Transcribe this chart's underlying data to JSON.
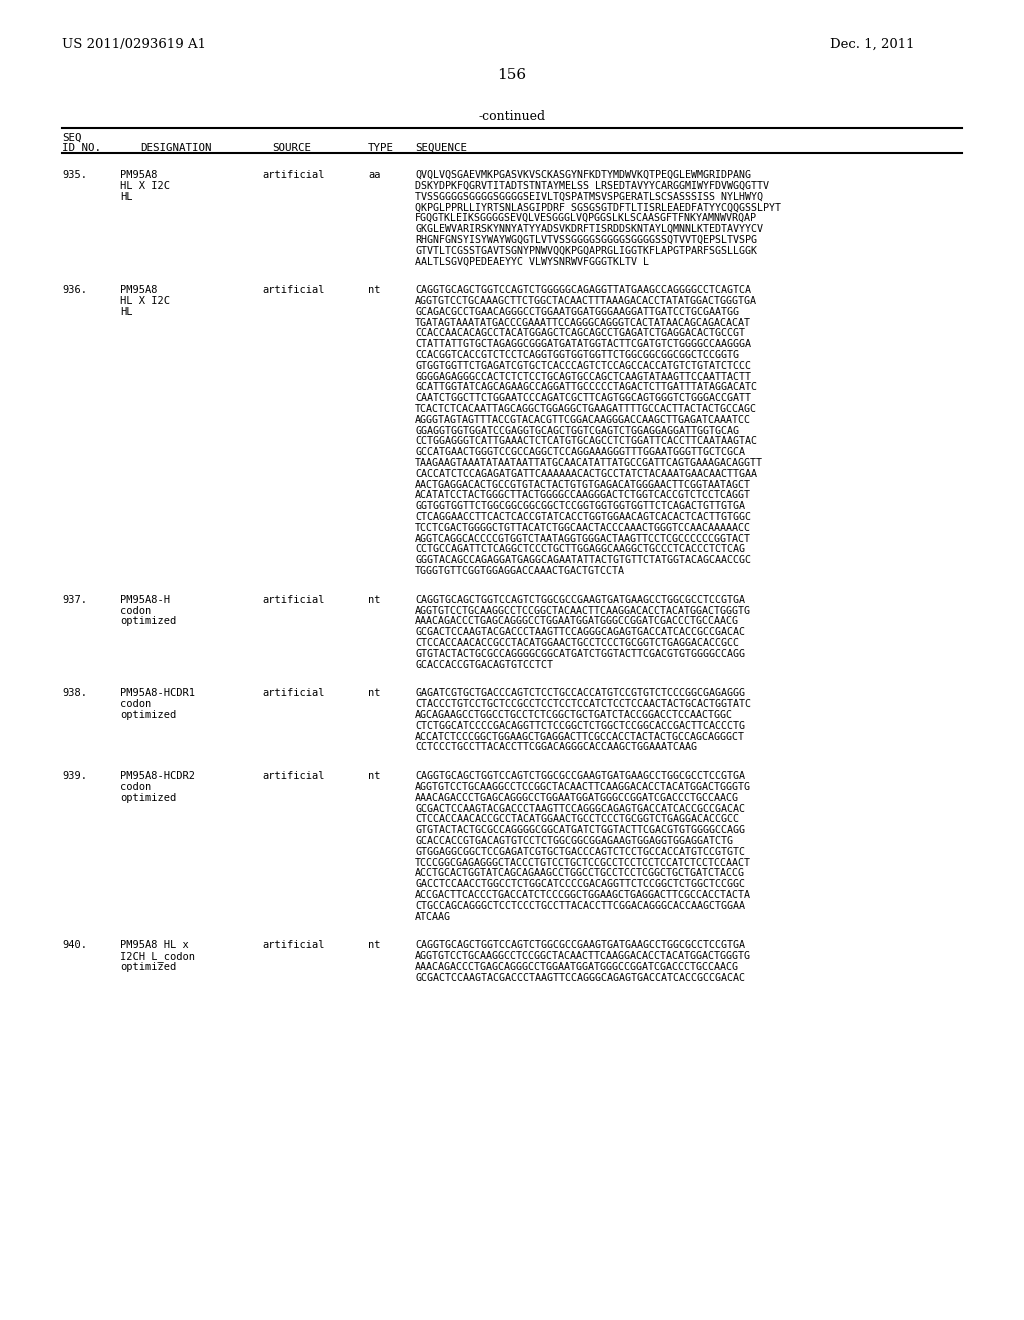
{
  "page_header_left": "US 2011/0293619 A1",
  "page_header_right": "Dec. 1, 2011",
  "page_number": "156",
  "continued_label": "-continued",
  "background_color": "#ffffff",
  "text_color": "#000000",
  "entries": [
    {
      "seq_id": "935.",
      "designation_lines": [
        "PM95A8",
        "HL X I2C",
        "HL"
      ],
      "source": "artificial",
      "type": "aa",
      "seq_lines": [
        "QVQLVQSGAEVMKPGASVKVSCKASGYNFKDTYMDWVKQTPEQGLEWMGRIDPANG",
        "DSKYDPKFQGRVTITADTSTNTAYMELSS LRSEDTAVYYCARGGMIWYFDVWGQGTTV",
        "TVSSGGGGSGGGGSGGGGSEIVLTQSPATMSVSPGERATLSCSASSSISS NYLHWYQ",
        "QKPGLPPRLLIYRTSNLASGIPDRF SGSGSGTDFTLTISRLEAEDFATYYCQQGSSLPYT",
        "FGQGTKLEIKSGGGGSEVQLVESGGGLVQPGGSLKLSCAASGFTFNKYAMNWVRQAP",
        "GKGLEWVARIRSKYNNYATYYADSVKDRFTISRDDSKNTAYLQMNNLKTEDTAVYYCV",
        "RHGNFGNSYISYWAYWGQGTLVTVSSGGGGSGGGGSGGGGSSQTVVTQEPSLTVSPG",
        "GTVTLTCGSSTGAVTSGNYPNWVQQKPGQAPRGLIGGTKFLAPGTPARFSGSLLGGK",
        "AALTLSGVQPEDEAEYYC VLWYSNRWVFGGGTKLTV L"
      ]
    },
    {
      "seq_id": "936.",
      "designation_lines": [
        "PM95A8",
        "HL X I2C",
        "HL"
      ],
      "source": "artificial",
      "type": "nt",
      "seq_lines": [
        "CAGGTGCAGCTGGTCCAGTCTGGGGGCAGAGGTTATGAAGCCAGGGGCCTCAGTCA",
        "AGGTGTCCTGCAAAGCTTCTGGCTACAACTTTAAAGACACCTATATGGACTGGGTGA",
        "GCAGACGCCTGAACAGGGCCTGGAATGGATGGGAAGGATTGATCCTGCGAATGG",
        "TGATAGTAAATATGACCCGAAATTCCAGGGCAGGGTCACTATAACAGCAGACACAT",
        "CCACCAACACAGCCTACATGGAGCTCAGCAGCCTGAGATCTGAGGACACTGCCGT",
        "CTATTATTGTGCTAGAGGCGGGATGATATGGTACTTCGATGTCTGGGGCCAAGGGA",
        "CCACGGTCACCGTCTCCTCAGGTGGTGGTGGTTCTGGCGGCGGCGGCTCCGGTG",
        "GTGGTGGTTCTGAGATCGTGCTCACCCAGTCTCCAGCCACCATGTCTGTATCTCCC",
        "GGGGAGAGGGCCACTCTCTCCTGCAGTGCCAGCTCAAGTATAAGTTCCAATTACTT",
        "GCATTGGTATCAGCAGAAGCCAGGATTGCCCCCTAGACTCTTGATTTATAGGACATC",
        "CAATCTGGCTTCTGGAATCCCAGATCGCTTCAGTGGCAGTGGGTCTGGGACCGATT",
        "TCACTCTCACAATTAGCAGGCTGGAGGCTGAAGATTTTGCCACTTACTACTGCCAGC",
        "AGGGTAGTAGTTTACCGTACACGTTCGGACAAGGGACCAAGCTTGAGATCAAATCC",
        "GGAGGTGGTGGATCCGAGGTGCAGCTGGTCGAGTCTGGAGGAGGATTGGTGCAG",
        "CCTGGAGGGTCATTGAAACTCTCATGTGCAGCCTCTGGATTCACCTTCAATAAGTAC",
        "GCCATGAACTGGGTCCGCCAGGCTCCAGGAAAGGGTTTGGAATGGGTTGCTCGCA",
        "TAAGAAGTAAATATAATAATTATGCAACATATTATGCCGATTCAGTGAAAGACAGGTT",
        "CACCATCTCCAGAGATGATTCAAAAAACACTGCCTATCTACAAATGAACAACTTGAA",
        "AACTGAGGACACTGCCGTGTACTACTGTGTGAGACATGGGAACTTCGGTAATAGCT",
        "ACATATCCTACTGGGCTTACTGGGGCCAAGGGACTCTGGTCACCGTCTCCTCAGGT",
        "GGTGGTGGTTCTGGCGGCGGCGGCTCCGGTGGTGGTGGTTCTCAGACTGTTGTGA",
        "CTCAGGAACCTTCACTCACCGTATCACCTGGTGGAACAGTCACACTCACTTGTGGC",
        "TCCTCGACTGGGGCTGTTACATCTGGCAACTACCCAAACTGGGTCCAACAAAAACC",
        "AGGTCAGGCACCCCGTGGTCTAATAGGTGGGACTAAGTTCCTCGCCCCCCGGTACT",
        "CCTGCCAGATTCTCAGGCTCCCTGCTTGGAGGCAAGGCTGCCCTCACCCTCTCAG",
        "GGGTACAGCCAGAGGATGAGGCAGAATATTACTGTGTTCTATGGTACAGCAACCGC",
        "TGGGTGTTCGGTGGAGGACCAAACTGACTGTCCTA"
      ]
    },
    {
      "seq_id": "937.",
      "designation_lines": [
        "PM95A8-H",
        "codon",
        "optimized"
      ],
      "source": "artificial",
      "type": "nt",
      "seq_lines": [
        "CAGGTGCAGCTGGTCCAGTCTGGCGCCGAAGTGATGAAGCCTGGCGCCTCCGTGA",
        "AGGTGTCCTGCAAGGCCTCCGGCTACAACTTCAAGGACACCTACATGGACTGGGTG",
        "AAACAGACCCTGAGCAGGGCCTGGAATGGATGGGCCGGATCGACCCTGCCAACG",
        "GCGACTCCAAGTACGACCCTAAGTTCCAGGGCAGAGTGACCATCACCGCCGACAC",
        "CTCCACCAACACCGCCTACATGGAACTGCCTCCCTGCGGTCTGAGGACACCGCC",
        "GTGTACTACTGCGCCAGGGGCGGCATGATCTGGTACTTCGACGTGTGGGGCCAGG",
        "GCACCACCGTGACAGTGTCCTCT"
      ]
    },
    {
      "seq_id": "938.",
      "designation_lines": [
        "PM95A8-HCDR1",
        "codon",
        "optimized"
      ],
      "source": "artificial",
      "type": "nt",
      "seq_lines": [
        "GAGATCGTGCTGACCCAGTCTCCTGCCACCATGTCCGTGTCTCCCGGCGAGAGGG",
        "CTACCCTGTCCTGCTCCGCCTCCTCCTCCATCTCCTCCAACTACTGCACTGGTATC",
        "AGCAGAAGCCTGGCCTGCCTCTCGGCTGCTGATCTACCGGACCTCCAACTGGC",
        "CTCTGGCATCCCCGACAGGTTCTCCGGCTCTGGCTCCGGCACCGACTTCACCCTG",
        "ACCATCTCCCGGCTGGAAGCTGAGGACTTCGCCACCTACTACTGCCAGCAGGGCT",
        "CCTCCCTGCCTTACACCTTCGGACAGGGCACCAAGCTGGAAATCAAG"
      ]
    },
    {
      "seq_id": "939.",
      "designation_lines": [
        "PM95A8-HCDR2",
        "codon",
        "optimized"
      ],
      "source": "artificial",
      "type": "nt",
      "seq_lines": [
        "CAGGTGCAGCTGGTCCAGTCTGGCGCCGAAGTGATGAAGCCTGGCGCCTCCGTGA",
        "AGGTGTCCTGCAAGGCCTCCGGCTACAACTTCAAGGACACCTACATGGACTGGGTG",
        "AAACAGACCCTGAGCAGGGCCTGGAATGGATGGGCCGGATCGACCCTGCCAACG",
        "GCGACTCCAAGTACGACCCTAAGTTCCAGGGCAGAGTGACCATCACCGCCGACAC",
        "CTCCACCAACACCGCCTACATGGAACTGCCTCCCTGCGGTCTGAGGACACCGCC",
        "GTGTACTACTGCGCCAGGGGCGGCATGATCTGGTACTTCGACGTGTGGGGCCAGG",
        "GCACCACCGTGACAGTGTCCTCTGGCGGCGGAGAAGTGGAGGTGGAGGATCTG",
        "GTGGAGGCGGCTCCGAGATCGTGCTGACCCAGTCTCCTGCCACCATGTCCGTGTC",
        "TCCCGGCGAGAGGGCTACCCTGTCCTGCTCCGCCTCCTCCTCCATCTCCTCCAACT",
        "ACCTGCACTGGTATCAGCAGAAGCCTGGCCTGCCTCCTCGGCTGCTGATCTACCG",
        "GACCTCCAACCTGGCCTCTGGCATCCCCGACAGGTTCTCCGGCTCTGGCTCCGGC",
        "ACCGACTTCACCCTGACCATCTCCCGGCTGGAAGCTGAGGACTTCGCCACCTACTA",
        "CTGCCAGCAGGGCTCCTCCCTGCCTTACACCTTCGGACAGGGCACCAAGCTGGAA",
        "ATCAAG"
      ]
    },
    {
      "seq_id": "940.",
      "designation_lines": [
        "PM95A8 HL x",
        "I2CH L_codon",
        "optimized"
      ],
      "source": "artificial",
      "type": "nt",
      "seq_lines": [
        "CAGGTGCAGCTGGTCCAGTCTGGCGCCGAAGTGATGAAGCCTGGCGCCTCCGTGA",
        "AGGTGTCCTGCAAGGCCTCCGGCTACAACTTCAAGGACACCTACATGGACTGGGTG",
        "AAACAGACCCTGAGCAGGGCCTGGAATGGATGGGCCGGATCGACCCTGCCAACG",
        "GCGACTCCAAGTACGACCCTAAGTTCCAGGGCAGAGTGACCATCACCGCCGACAC"
      ]
    }
  ]
}
